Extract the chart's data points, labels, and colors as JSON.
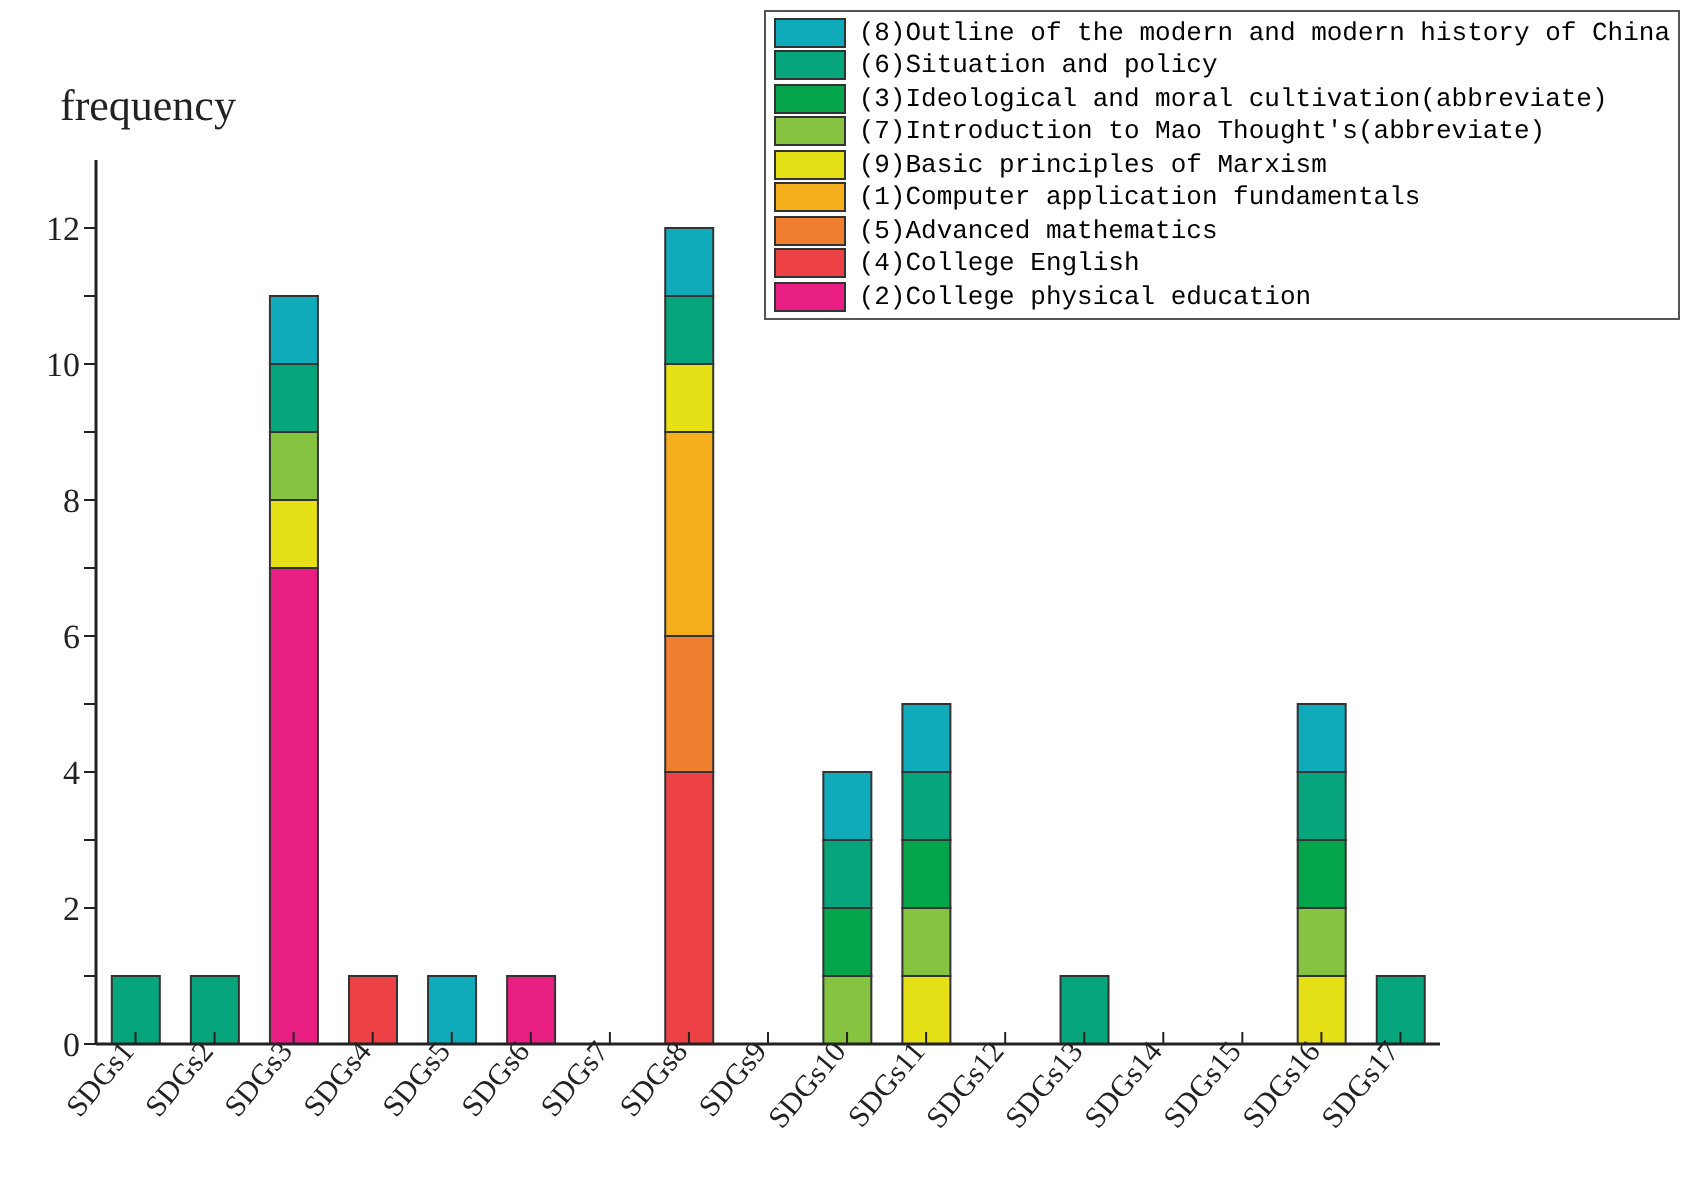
{
  "chart_data": {
    "type": "bar",
    "stacked": true,
    "ylabel": "frequency",
    "categories": [
      "SDGs1",
      "SDGs2",
      "SDGs3",
      "SDGs4",
      "SDGs5",
      "SDGs6",
      "SDGs7",
      "SDGs8",
      "SDGs9",
      "SDGs10",
      "SDGs11",
      "SDGs12",
      "SDGs13",
      "SDGs14",
      "SDGs15",
      "SDGs16",
      "SDGs17"
    ],
    "series": [
      {
        "name": "(2)College physical education",
        "color": "#e91e82",
        "values": [
          0,
          0,
          7,
          0,
          0,
          1,
          0,
          0,
          0,
          0,
          0,
          0,
          0,
          0,
          0,
          0,
          0
        ]
      },
      {
        "name": "(4)College English",
        "color": "#ec4145",
        "values": [
          0,
          0,
          0,
          1,
          0,
          0,
          0,
          4,
          0,
          0,
          0,
          0,
          0,
          0,
          0,
          0,
          0
        ]
      },
      {
        "name": "(5)Advanced mathematics",
        "color": "#f08030",
        "values": [
          0,
          0,
          0,
          0,
          0,
          0,
          0,
          2,
          0,
          0,
          0,
          0,
          0,
          0,
          0,
          0,
          0
        ]
      },
      {
        "name": "(1)Computer application fundamentals",
        "color": "#f5ae1c",
        "values": [
          0,
          0,
          0,
          0,
          0,
          0,
          0,
          3,
          0,
          0,
          0,
          0,
          0,
          0,
          0,
          0,
          0
        ]
      },
      {
        "name": "(9)Basic principles of Marxism",
        "color": "#e6e017",
        "values": [
          0,
          0,
          1,
          0,
          0,
          0,
          0,
          1,
          0,
          0,
          1,
          0,
          0,
          0,
          0,
          1,
          0
        ]
      },
      {
        "name": "(7)Introduction to Mao Thought's(abbreviate)",
        "color": "#86c341",
        "values": [
          0,
          0,
          1,
          0,
          0,
          0,
          0,
          0,
          0,
          1,
          1,
          0,
          0,
          0,
          0,
          1,
          0
        ]
      },
      {
        "name": "(3)Ideological and moral cultivation(abbreviate)",
        "color": "#05a54b",
        "values": [
          0,
          0,
          0,
          0,
          0,
          0,
          0,
          0,
          0,
          1,
          1,
          0,
          0,
          0,
          0,
          1,
          0
        ]
      },
      {
        "name": "(6)Situation and policy",
        "color": "#06a57b",
        "values": [
          1,
          1,
          1,
          0,
          0,
          0,
          0,
          1,
          0,
          1,
          1,
          0,
          1,
          0,
          0,
          1,
          1
        ]
      },
      {
        "name": "(8)Outline of the modern and modern history of China",
        "color": "#10abbb",
        "values": [
          0,
          0,
          1,
          0,
          1,
          0,
          0,
          1,
          0,
          1,
          1,
          0,
          0,
          0,
          0,
          1,
          0
        ]
      }
    ],
    "ylim": [
      0,
      13
    ],
    "yticks": [
      0,
      {
        "value": 1,
        "label": null
      },
      2,
      {
        "value": 3,
        "label": null
      },
      4,
      {
        "value": 5,
        "label": null
      },
      6,
      {
        "value": 7,
        "label": null
      },
      8,
      {
        "value": 9,
        "label": null
      },
      10,
      {
        "value": 11,
        "label": null
      },
      12
    ],
    "grid": false,
    "legend": "top right"
  }
}
